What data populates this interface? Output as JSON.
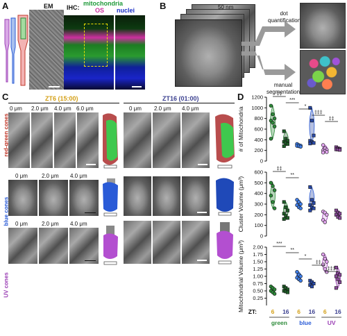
{
  "panelA": {
    "label": "A",
    "em_label": "EM",
    "ihc_label": "IHC:",
    "mito_label": "mitochondria",
    "os_label": "OS",
    "nuclei_label": "nuclei",
    "colors": {
      "mito": "#1f9a3a",
      "os": "#cc2f9f",
      "nuclei": "#1a2fc8"
    }
  },
  "panelB": {
    "label": "B",
    "scale": "50 nm",
    "dot": "dot quantification",
    "manual": "manual segmentation"
  },
  "panelC": {
    "label": "C",
    "zt6": "ZT6 (15:00)",
    "zt16": "ZT16 (01:00)",
    "rg_label": "red-green cones",
    "blue_label": "blue cones",
    "uv_label": "UV cones",
    "rg_depths_zt6": [
      "0 μm",
      "2.0 μm",
      "4.0 μm",
      "6.0 μm"
    ],
    "rg_depths_zt16": [
      "0 μm",
      "2.0 μm",
      "4.0 μm"
    ],
    "blue_depths_zt6": [
      "0 μm",
      "2.0 μm",
      "4.0 μm"
    ],
    "uv_depths_zt6": [
      "0 μm",
      "2.0 μm",
      "4.0 μm"
    ],
    "colors": {
      "zt6": "#d4a017",
      "zt16": "#3a3f8f",
      "rg": "#c0392b",
      "blue": "#2a5bd7",
      "uv": "#9b3fb5"
    }
  },
  "panelD": {
    "label": "D",
    "zt_label": "ZT:",
    "zt_ticks": [
      "6",
      "16",
      "6",
      "16",
      "6",
      "16"
    ],
    "groups": [
      "green",
      "blue",
      "UV"
    ],
    "group_colors": {
      "green": "#2e8b3a",
      "blue": "#2a5bd7",
      "UV": "#9b3fb5"
    },
    "zt_colors": {
      "6": "#d4a017",
      "16": "#3a3f8f"
    }
  },
  "chart_data": [
    {
      "type": "scatter",
      "ylabel": "# of Mitochondria",
      "ylim": [
        0,
        1200
      ],
      "yticks": [
        0,
        200,
        400,
        600,
        800,
        1000,
        1200
      ],
      "series": [
        {
          "values": [
            1040,
            880,
            800,
            760,
            720,
            650,
            420
          ]
        },
        {
          "values": [
            560,
            420,
            380,
            360,
            340,
            320,
            280
          ]
        },
        {
          "values": [
            320,
            300,
            290,
            285,
            280,
            270
          ]
        },
        {
          "values": [
            1000,
            760,
            480,
            380,
            360,
            340,
            330
          ]
        },
        {
          "values": [
            300,
            240,
            210,
            200,
            190,
            170,
            160
          ]
        },
        {
          "values": [
            260,
            240,
            230,
            220,
            215,
            210
          ]
        }
      ],
      "annotations": [
        "‡‡",
        "***",
        "*",
        "‡‡‡",
        "‡‡"
      ]
    },
    {
      "type": "scatter",
      "ylabel": "Cluster Volume (μm³)",
      "ylim": [
        0,
        600
      ],
      "yticks": [
        0,
        100,
        200,
        300,
        400,
        500,
        600
      ],
      "series": [
        {
          "values": [
            500,
            470,
            430,
            380,
            320,
            260
          ]
        },
        {
          "values": [
            320,
            270,
            240,
            210,
            190,
            170,
            160
          ]
        },
        {
          "values": [
            340,
            320,
            300,
            290,
            270,
            260
          ]
        },
        {
          "values": [
            460,
            340,
            310,
            290,
            270,
            260,
            240
          ]
        },
        {
          "values": [
            230,
            220,
            200,
            150,
            130
          ]
        },
        {
          "values": [
            240,
            220,
            210,
            200,
            180,
            170
          ]
        }
      ],
      "annotations": [
        "‡‡",
        "**"
      ]
    },
    {
      "type": "scatter",
      "ylabel": "Mitochondrial Volume (μm³)",
      "ylim": [
        0,
        2.0
      ],
      "yticks": [
        0.25,
        0.5,
        0.75,
        1.0,
        1.25,
        1.5,
        1.75,
        2.0
      ],
      "series": [
        {
          "values": [
            0.65,
            0.6,
            0.55,
            0.5,
            0.45,
            0.4
          ]
        },
        {
          "values": [
            0.65,
            0.6,
            0.55,
            0.5,
            0.48,
            0.45
          ]
        },
        {
          "values": [
            1.15,
            1.05,
            1.0,
            0.95,
            0.9,
            0.85
          ]
        },
        {
          "values": [
            0.85,
            0.8,
            0.75,
            0.7,
            0.65
          ]
        },
        {
          "values": [
            1.75,
            1.6,
            1.5,
            1.4,
            1.25,
            1.15
          ]
        },
        {
          "values": [
            1.3,
            1.1,
            1.05,
            1.0,
            0.9,
            0.8,
            0.6
          ]
        }
      ],
      "annotations": [
        "***",
        "**",
        "*",
        "‡‡",
        "‡‡‡"
      ]
    }
  ]
}
